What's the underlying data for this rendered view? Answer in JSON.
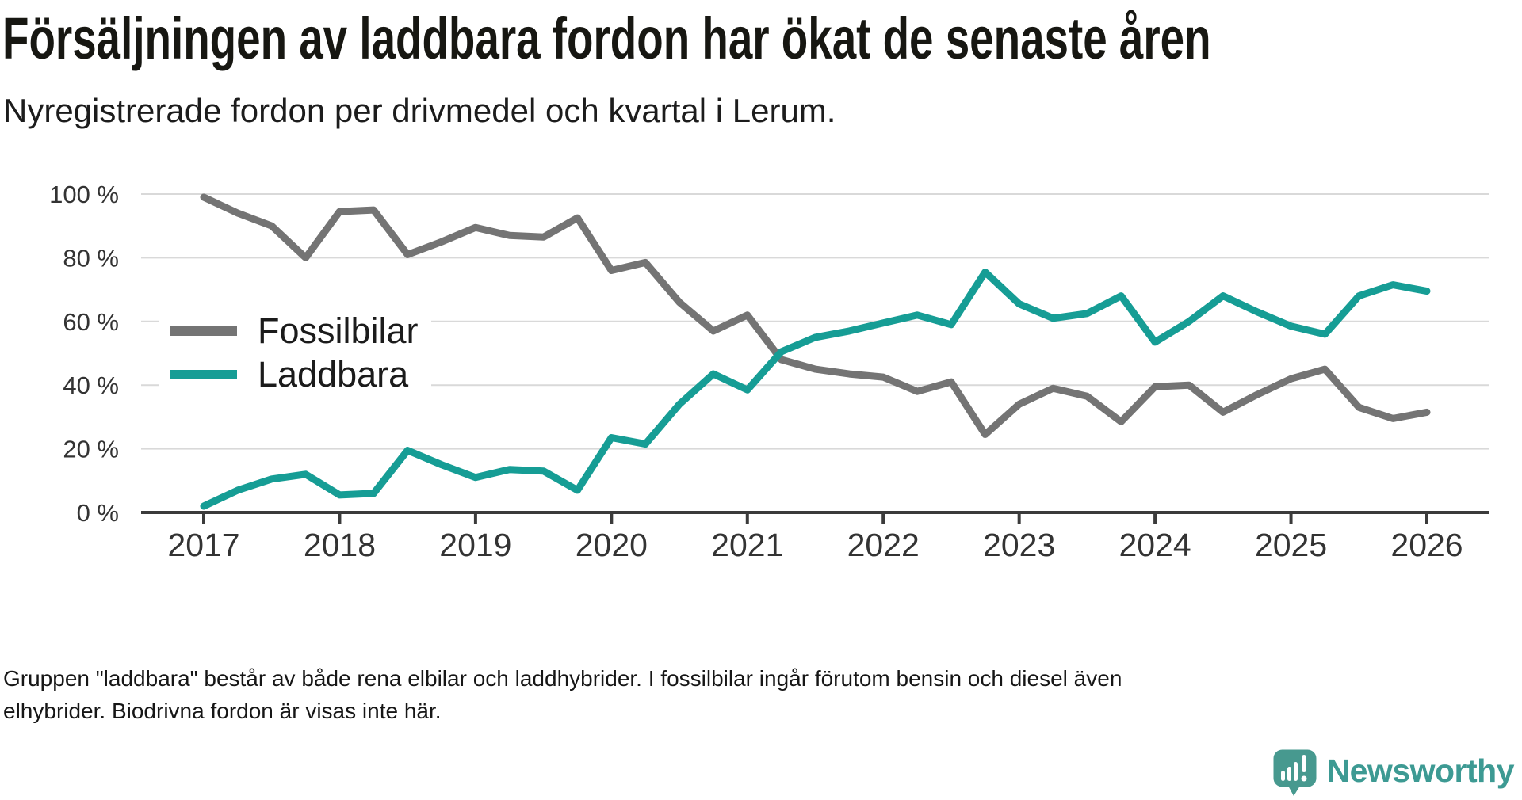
{
  "header": {
    "title": "Försäljningen av laddbara fordon har ökat de senaste åren",
    "subtitle": "Nyregistrerade fordon per drivmedel och kvartal i Lerum."
  },
  "footer": {
    "note": "Gruppen \"laddbara\" består av både rena elbilar och laddhybrider. I fossilbilar ingår förutom bensin och diesel även elhybrider. Biodrivna fordon är visas inte här."
  },
  "logo": {
    "wordmark": "Newsworthy",
    "icon": "newsworthy-speech-bubble-chart-icon",
    "icon_color": "#47998f",
    "wordmark_color": "#3d9a93"
  },
  "chart_data": {
    "type": "line",
    "title": "Försäljningen av laddbara fordon har ökat de senaste åren",
    "xlabel": "",
    "ylabel": "",
    "x_unit": "quarter",
    "ylim": [
      0,
      100
    ],
    "grid": "horizontal",
    "legend_position": "inside-left",
    "colors": {
      "grid": "#d9d9d9",
      "axis": "#3b3b3b",
      "tick_label": "#333333"
    },
    "yticks": [
      {
        "value": 0,
        "label": "0 %"
      },
      {
        "value": 20,
        "label": "20 %"
      },
      {
        "value": 40,
        "label": "40 %"
      },
      {
        "value": 60,
        "label": "60 %"
      },
      {
        "value": 80,
        "label": "80 %"
      },
      {
        "value": 100,
        "label": "100 %"
      }
    ],
    "xtick_labels": [
      "2017",
      "2018",
      "2019",
      "2020",
      "2021",
      "2022",
      "2023",
      "2024",
      "2025",
      "2026"
    ],
    "quarters": [
      "2017 Q1",
      "2017 Q2",
      "2017 Q3",
      "2017 Q4",
      "2018 Q1",
      "2018 Q2",
      "2018 Q3",
      "2018 Q4",
      "2019 Q1",
      "2019 Q2",
      "2019 Q3",
      "2019 Q4",
      "2020 Q1",
      "2020 Q2",
      "2020 Q3",
      "2020 Q4",
      "2021 Q1",
      "2021 Q2",
      "2021 Q3",
      "2021 Q4",
      "2022 Q1",
      "2022 Q2",
      "2022 Q3",
      "2022 Q4",
      "2023 Q1",
      "2023 Q2",
      "2023 Q3",
      "2023 Q4",
      "2024 Q1",
      "2024 Q2",
      "2024 Q3",
      "2024 Q4",
      "2025 Q1",
      "2025 Q2",
      "2025 Q3",
      "2025 Q4",
      "2026 Q1"
    ],
    "series": [
      {
        "name": "Fossilbilar",
        "color": "#747474",
        "values": [
          99,
          94,
          90,
          80,
          94.5,
          95,
          81,
          85,
          89.5,
          87,
          86.5,
          92.5,
          76,
          78.5,
          66,
          57,
          62,
          48,
          45,
          43.5,
          42.5,
          38,
          41,
          24.5,
          34,
          39,
          36.5,
          28.5,
          39.5,
          40,
          31.5,
          37,
          42,
          45,
          33,
          29.5,
          31.5
        ]
      },
      {
        "name": "Laddbara",
        "color": "#169d95",
        "values": [
          2,
          7,
          10.5,
          12,
          5.5,
          6,
          19.5,
          15,
          11,
          13.5,
          13,
          7,
          23.5,
          21.5,
          34,
          43.5,
          38.5,
          50.5,
          55,
          57,
          59.5,
          62,
          59,
          75.5,
          65.5,
          61,
          62.5,
          68,
          53.5,
          60,
          68,
          63,
          58.5,
          56,
          68,
          71.5,
          69.5
        ]
      }
    ]
  }
}
